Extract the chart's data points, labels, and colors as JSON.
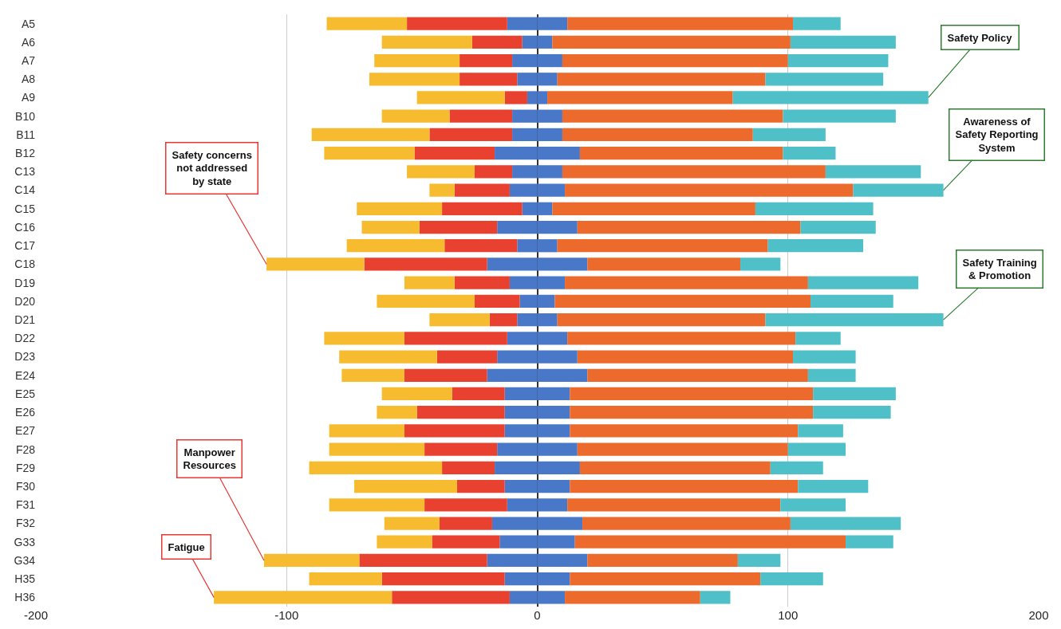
{
  "chart_data": {
    "type": "bar",
    "orientation": "horizontal",
    "stacked": true,
    "categories": [
      "A5",
      "A6",
      "A7",
      "A8",
      "A9",
      "B10",
      "B11",
      "B12",
      "C13",
      "C14",
      "C15",
      "C16",
      "C17",
      "C18",
      "D19",
      "D20",
      "D21",
      "D22",
      "D23",
      "E24",
      "E25",
      "E26",
      "E27",
      "F28",
      "F29",
      "F30",
      "F31",
      "F32",
      "G33",
      "G34",
      "H35",
      "H36"
    ],
    "series": [
      {
        "color": "#4a78c8",
        "values": [
          -12,
          -6,
          -10,
          -8,
          -4,
          -10,
          -10,
          -17,
          -10,
          -11,
          -6,
          -16,
          -8,
          -20,
          -11,
          -7,
          -8,
          -12,
          -16,
          -20,
          -13,
          -13,
          -13,
          -16,
          -17,
          -13,
          -12,
          -18,
          -15,
          -20,
          -13,
          -11
        ]
      },
      {
        "color": "#e8412f",
        "values": [
          -40,
          -20,
          -21,
          -23,
          -9,
          -25,
          -33,
          -32,
          -15,
          -22,
          -32,
          -31,
          -29,
          -49,
          -22,
          -18,
          -11,
          -41,
          -24,
          -33,
          -21,
          -35,
          -40,
          -29,
          -21,
          -19,
          -33,
          -21,
          -27,
          -51,
          -49,
          -47
        ]
      },
      {
        "color": "#f6bb2f",
        "values": [
          -32,
          -36,
          -34,
          -36,
          -35,
          -27,
          -47,
          -36,
          -27,
          -10,
          -34,
          -23,
          -39,
          -39,
          -20,
          -39,
          -24,
          -32,
          -39,
          -25,
          -28,
          -16,
          -30,
          -38,
          -53,
          -41,
          -38,
          -22,
          -22,
          -38,
          -29,
          -71
        ]
      },
      {
        "color": "#4a78c8",
        "values": [
          12,
          6,
          10,
          8,
          4,
          10,
          10,
          17,
          10,
          11,
          6,
          16,
          8,
          20,
          11,
          7,
          8,
          12,
          16,
          20,
          13,
          13,
          13,
          16,
          17,
          13,
          12,
          18,
          15,
          20,
          13,
          11
        ]
      },
      {
        "color": "#ec6a2c",
        "values": [
          90,
          95,
          90,
          83,
          74,
          88,
          76,
          81,
          105,
          115,
          81,
          89,
          84,
          61,
          97,
          102,
          83,
          91,
          86,
          88,
          97,
          97,
          91,
          84,
          76,
          91,
          85,
          83,
          108,
          60,
          76,
          54
        ]
      },
      {
        "color": "#4fc0c8",
        "values": [
          19,
          42,
          40,
          47,
          78,
          45,
          29,
          21,
          38,
          36,
          47,
          30,
          38,
          16,
          44,
          33,
          71,
          18,
          25,
          19,
          33,
          31,
          18,
          23,
          21,
          28,
          26,
          44,
          19,
          17,
          25,
          12
        ]
      }
    ],
    "xlim": [
      -200,
      200
    ],
    "xticks": [
      -200,
      -100,
      0,
      100,
      200
    ],
    "grid": "x",
    "annotations": [
      {
        "text": "Safety Policy",
        "x": 156,
        "y": "A9"
      },
      {
        "text": "Awareness of\nSafety Reporting\nSystem",
        "x": 162,
        "y": "C14"
      },
      {
        "text": "Safety Training\n& Promotion",
        "x": 162,
        "y": "D21"
      },
      {
        "text": "Safety concerns\nnot addressed\nby state",
        "x": -108,
        "y": "C18"
      },
      {
        "text": "Manpower\nResources",
        "x": -109,
        "y": "G34"
      },
      {
        "text": "Fatigue",
        "x": -129,
        "y": "H36"
      }
    ]
  }
}
